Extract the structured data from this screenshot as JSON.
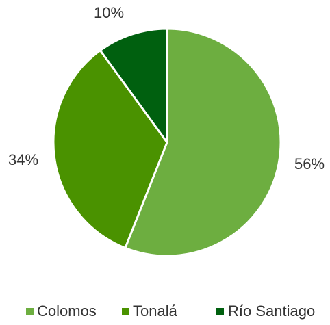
{
  "chart_data": {
    "type": "pie",
    "categories": [
      "Colomos",
      "Tonalá",
      "Río Santiago"
    ],
    "values": [
      56,
      34,
      10
    ],
    "labels": [
      "56%",
      "34%",
      "10%"
    ],
    "colors": [
      "#6DAE40",
      "#4A9200",
      "#00600F"
    ],
    "legend_position": "bottom",
    "start_angle": "12 o'clock, clockwise",
    "slice_border_color": "#ffffff"
  }
}
